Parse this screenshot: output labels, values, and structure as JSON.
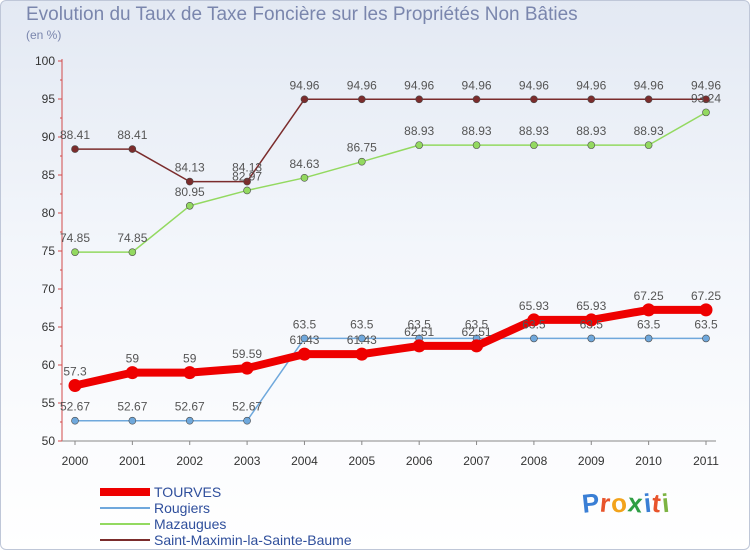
{
  "title": "Evolution du Taux de Taxe Foncière sur les Propriétés Non Bâties",
  "subtitle": "(en %)",
  "logo_text": "Proxiti",
  "chart_data": {
    "type": "line",
    "title": "Evolution du Taux de Taxe Foncière sur les Propriétés Non Bâties",
    "ylabel": "(en %)",
    "xlabel": "",
    "x": [
      "2000",
      "2001",
      "2002",
      "2003",
      "2004",
      "2005",
      "2006",
      "2007",
      "2008",
      "2009",
      "2010",
      "2011"
    ],
    "ylim": [
      50,
      100
    ],
    "yticks": [
      50,
      55,
      60,
      65,
      70,
      75,
      80,
      85,
      90,
      95,
      100
    ],
    "grid": false,
    "legend": "bottom-left",
    "series": [
      {
        "name": "TOURVES",
        "color": "#ee0000",
        "values": [
          57.3,
          59,
          59,
          59.59,
          61.43,
          61.43,
          62.51,
          62.51,
          65.93,
          65.93,
          67.25,
          67.25
        ],
        "labels": [
          "57.3",
          "59",
          "59",
          "59.59",
          "61.43",
          "61.43",
          "62.51",
          "62.51",
          "65.93",
          "65.93",
          "67.25",
          "67.25"
        ]
      },
      {
        "name": "Rougiers",
        "color": "#6fa8dc",
        "values": [
          52.67,
          52.67,
          52.67,
          52.67,
          63.5,
          63.5,
          63.5,
          63.5,
          63.5,
          63.5,
          63.5,
          63.5
        ],
        "labels": [
          "52.67",
          "52.67",
          "52.67",
          "52.67",
          "63.5",
          "63.5",
          "63.5",
          "63.5",
          "63.5",
          "63.5",
          "63.5",
          "63.5"
        ]
      },
      {
        "name": "Mazaugues",
        "color": "#93d960",
        "values": [
          74.85,
          74.85,
          80.95,
          82.97,
          84.63,
          86.75,
          88.93,
          88.93,
          88.93,
          88.93,
          88.93,
          93.24
        ],
        "labels": [
          "74.85",
          "74.85",
          "80.95",
          "82.97",
          "84.63",
          "86.75",
          "88.93",
          "88.93",
          "88.93",
          "88.93",
          "88.93",
          "93.24"
        ]
      },
      {
        "name": "Saint-Maximin-la-Sainte-Baume",
        "color": "#7b2c2c",
        "values": [
          88.41,
          88.41,
          84.13,
          84.13,
          94.96,
          94.96,
          94.96,
          94.96,
          94.96,
          94.96,
          94.96,
          94.96
        ],
        "labels": [
          "88.41",
          "88.41",
          "84.13",
          "84.13",
          "94.96",
          "94.96",
          "94.96",
          "94.96",
          "94.96",
          "94.96",
          "94.96",
          "94.96"
        ]
      }
    ]
  }
}
